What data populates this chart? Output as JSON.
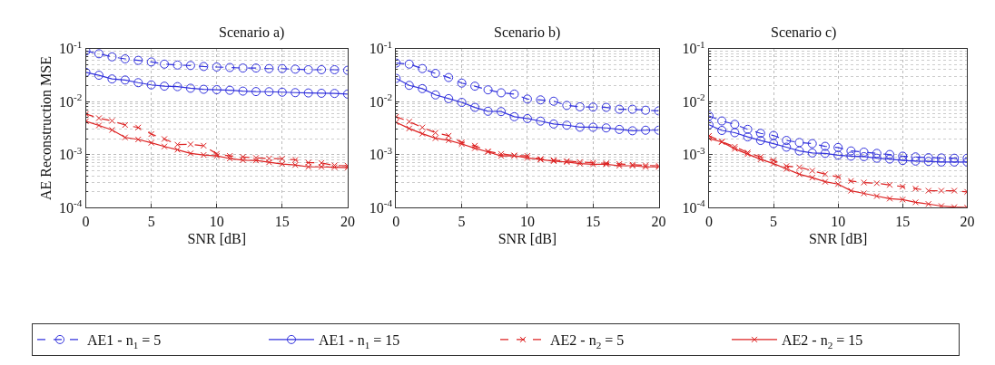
{
  "chart_data": [
    {
      "type": "line",
      "title": "Scenario a)",
      "xlabel": "SNR [dB]",
      "ylabel": "AE Reconstruction MSE",
      "log": "y",
      "grid": true,
      "legend": "bottom",
      "x": [
        0,
        1,
        2,
        3,
        4,
        5,
        6,
        7,
        8,
        9,
        10,
        11,
        12,
        13,
        14,
        15,
        16,
        17,
        18,
        19,
        20
      ],
      "xlim": [
        0,
        20
      ],
      "xticks": [
        0,
        5,
        10,
        15,
        20
      ],
      "ylim": [
        0.0001,
        0.1
      ],
      "yticks": [
        {
          "value": 0.0001,
          "label": "10$^{-4}$"
        },
        {
          "value": 0.001,
          "label": "10$^{-3}$"
        },
        {
          "value": 0.01,
          "label": "10$^{-2}$"
        },
        {
          "value": 0.1,
          "label": "10$^{-1}$"
        }
      ],
      "series": [
        {
          "name": "AE1 - n$_{1}$ = 5",
          "color": "#3333dd",
          "marker": "circle",
          "line_style": "dashed",
          "values": [
            0.09,
            0.08,
            0.07,
            0.064,
            0.06,
            0.056,
            0.051,
            0.049,
            0.048,
            0.046,
            0.045,
            0.044,
            0.043,
            0.043,
            0.042,
            0.042,
            0.041,
            0.04,
            0.04,
            0.04,
            0.039
          ]
        },
        {
          "name": "AE1 - n$_{1}$ = 15",
          "color": "#3333dd",
          "marker": "circle",
          "line_style": "solid",
          "values": [
            0.0357,
            0.0315,
            0.0268,
            0.0256,
            0.0228,
            0.0207,
            0.0196,
            0.0192,
            0.0179,
            0.0171,
            0.0168,
            0.0164,
            0.0158,
            0.0155,
            0.0154,
            0.0151,
            0.0148,
            0.0146,
            0.0144,
            0.0143,
            0.0139
          ]
        },
        {
          "name": "AE2 - n$_{2}$ = 5",
          "color": "#dd2222",
          "marker": "cross",
          "line_style": "dashed",
          "values": [
            0.00585,
            0.00489,
            0.00435,
            0.00363,
            0.00326,
            0.00245,
            0.00198,
            0.00155,
            0.00157,
            0.00148,
            0.00104,
            0.00095,
            0.00091,
            0.00087,
            0.00085,
            0.00084,
            0.0008,
            0.00071,
            0.0007,
            0.00063,
            0.00062
          ]
        },
        {
          "name": "AE2 - n$_{2}$ = 15",
          "color": "#dd2222",
          "marker": "cross",
          "line_style": "solid",
          "values": [
            0.00427,
            0.00357,
            0.00293,
            0.00212,
            0.00194,
            0.00168,
            0.00143,
            0.00124,
            0.00106,
            0.00099,
            0.00095,
            0.00085,
            0.00079,
            0.00078,
            0.00072,
            0.00067,
            0.00064,
            0.00059,
            0.00059,
            0.00058,
            0.00057
          ]
        }
      ]
    },
    {
      "type": "line",
      "title": "Scenario b)",
      "xlabel": "SNR [dB]",
      "log": "y",
      "grid": true,
      "x": [
        0,
        1,
        2,
        3,
        4,
        5,
        6,
        7,
        8,
        9,
        10,
        11,
        12,
        13,
        14,
        15,
        16,
        17,
        18,
        19,
        20
      ],
      "xlim": [
        0,
        20
      ],
      "xticks": [
        0,
        5,
        10,
        15,
        20
      ],
      "ylim": [
        0.0001,
        0.1
      ],
      "yticks": [
        {
          "value": 0.0001,
          "label": "10$^{-4}$"
        },
        {
          "value": 0.001,
          "label": "10$^{-3}$"
        },
        {
          "value": 0.01,
          "label": "10$^{-2}$"
        },
        {
          "value": 0.1,
          "label": "10$^{-1}$"
        }
      ],
      "series": [
        {
          "name": "AE1 - n$_{1}$ = 5",
          "color": "#3333dd",
          "marker": "circle",
          "line_style": "dashed",
          "values": [
            0.0534,
            0.051,
            0.042,
            0.0341,
            0.0285,
            0.0224,
            0.0196,
            0.0167,
            0.0147,
            0.0139,
            0.0112,
            0.0108,
            0.0102,
            0.0085,
            0.008,
            0.0079,
            0.0078,
            0.0072,
            0.0072,
            0.0069,
            0.0067
          ]
        },
        {
          "name": "AE1 - n$_{1}$ = 15",
          "color": "#3333dd",
          "marker": "circle",
          "line_style": "solid",
          "values": [
            0.0275,
            0.0203,
            0.0176,
            0.0134,
            0.0114,
            0.0097,
            0.0078,
            0.0066,
            0.0065,
            0.0052,
            0.0048,
            0.0043,
            0.0038,
            0.0036,
            0.0033,
            0.0033,
            0.0032,
            0.003,
            0.00283,
            0.0029,
            0.0029
          ]
        },
        {
          "name": "AE2 - n$_{2}$ = 5",
          "color": "#dd2222",
          "marker": "cross",
          "line_style": "dashed",
          "values": [
            0.0052,
            0.0042,
            0.00327,
            0.0026,
            0.00228,
            0.00171,
            0.00148,
            0.00116,
            0.00104,
            0.00097,
            0.00095,
            0.00083,
            0.00079,
            0.00076,
            0.00073,
            0.00071,
            0.00069,
            0.00067,
            0.00065,
            0.00063,
            0.00062
          ]
        },
        {
          "name": "AE2 - n$_{2}$ = 15",
          "color": "#dd2222",
          "marker": "cross",
          "line_style": "solid",
          "values": [
            0.0041,
            0.00312,
            0.00249,
            0.00205,
            0.00187,
            0.00159,
            0.00133,
            0.00113,
            0.00095,
            0.00096,
            0.00087,
            0.00081,
            0.00076,
            0.00073,
            0.00068,
            0.00066,
            0.00066,
            0.00062,
            0.00062,
            0.00059,
            0.00059
          ]
        }
      ]
    },
    {
      "type": "line",
      "title": "Scenario c)",
      "xlabel": "SNR [dB]",
      "log": "y",
      "grid": true,
      "x": [
        0,
        1,
        2,
        3,
        4,
        5,
        6,
        7,
        8,
        9,
        10,
        11,
        12,
        13,
        14,
        15,
        16,
        17,
        18,
        19,
        20
      ],
      "xlim": [
        0,
        20
      ],
      "xticks": [
        0,
        5,
        10,
        15,
        20
      ],
      "ylim": [
        0.0001,
        0.1
      ],
      "yticks": [
        {
          "value": 0.0001,
          "label": "10$^{-4}$"
        },
        {
          "value": 0.001,
          "label": "10$^{-3}$"
        },
        {
          "value": 0.01,
          "label": "10$^{-2}$"
        },
        {
          "value": 0.1,
          "label": "10$^{-1}$"
        }
      ],
      "series": [
        {
          "name": "AE1 - n$_{1}$ = 5",
          "color": "#3333dd",
          "marker": "circle",
          "line_style": "dashed",
          "values": [
            0.00539,
            0.00433,
            0.00374,
            0.00301,
            0.00253,
            0.00231,
            0.00186,
            0.0017,
            0.00162,
            0.00144,
            0.00137,
            0.00118,
            0.00112,
            0.00106,
            0.00101,
            0.00094,
            0.00091,
            0.00088,
            0.00087,
            0.00086,
            0.00086
          ]
        },
        {
          "name": "AE1 - n$_{1}$ = 15",
          "color": "#3333dd",
          "marker": "circle",
          "line_style": "solid",
          "values": [
            0.00367,
            0.00287,
            0.0026,
            0.00217,
            0.00186,
            0.00162,
            0.00139,
            0.00118,
            0.00108,
            0.00106,
            0.00098,
            0.00094,
            0.00092,
            0.00086,
            0.00083,
            0.00078,
            0.00076,
            0.00075,
            0.00073,
            0.00073,
            0.00073
          ]
        },
        {
          "name": "AE2 - n$_{2}$ = 5",
          "color": "#dd2222",
          "marker": "cross",
          "line_style": "dashed",
          "values": [
            0.00227,
            0.00177,
            0.00141,
            0.0011,
            0.00091,
            0.00078,
            0.00061,
            0.00058,
            0.0005,
            0.00043,
            0.00038,
            0.00032,
            0.0003,
            0.00029,
            0.00027,
            0.00025,
            0.00023,
            0.00021,
            0.00021,
            0.00021,
            0.0002
          ]
        },
        {
          "name": "AE2 - n$_{2}$ = 15",
          "color": "#dd2222",
          "marker": "cross",
          "line_style": "solid",
          "values": [
            0.00203,
            0.00174,
            0.00129,
            0.00103,
            0.00082,
            0.00068,
            0.00054,
            0.00043,
            0.00037,
            0.00031,
            0.00028,
            0.00021,
            0.000187,
            0.000166,
            0.000149,
            0.000143,
            0.000127,
            0.000118,
            0.000108,
            0.000103,
            0.000101
          ]
        }
      ]
    }
  ]
}
